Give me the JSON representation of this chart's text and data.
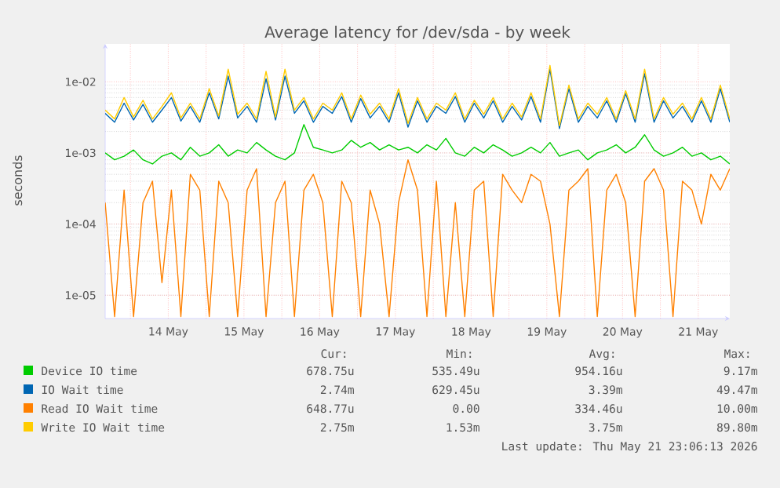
{
  "chart_data": {
    "type": "line",
    "title": "Average latency for /dev/sda - by week",
    "ylabel": "seconds",
    "x": [
      "2026-05-13T16:00",
      "2026-05-13T19:00",
      "2026-05-13T22:00",
      "2026-05-14T01:00",
      "2026-05-14T04:00",
      "2026-05-14T07:00",
      "2026-05-14T10:00",
      "2026-05-14T13:00",
      "2026-05-14T16:00",
      "2026-05-14T19:00",
      "2026-05-14T22:00",
      "2026-05-15T01:00",
      "2026-05-15T04:00",
      "2026-05-15T07:00",
      "2026-05-15T10:00",
      "2026-05-15T13:00",
      "2026-05-15T16:00",
      "2026-05-15T19:00",
      "2026-05-15T22:00",
      "2026-05-16T01:00",
      "2026-05-16T04:00",
      "2026-05-16T07:00",
      "2026-05-16T10:00",
      "2026-05-16T13:00",
      "2026-05-16T16:00",
      "2026-05-16T19:00",
      "2026-05-16T22:00",
      "2026-05-17T01:00",
      "2026-05-17T04:00",
      "2026-05-17T07:00",
      "2026-05-17T10:00",
      "2026-05-17T13:00",
      "2026-05-17T16:00",
      "2026-05-17T19:00",
      "2026-05-17T22:00",
      "2026-05-18T01:00",
      "2026-05-18T04:00",
      "2026-05-18T07:00",
      "2026-05-18T10:00",
      "2026-05-18T13:00",
      "2026-05-18T16:00",
      "2026-05-18T19:00",
      "2026-05-18T22:00",
      "2026-05-19T01:00",
      "2026-05-19T04:00",
      "2026-05-19T07:00",
      "2026-05-19T10:00",
      "2026-05-19T13:00",
      "2026-05-19T16:00",
      "2026-05-19T19:00",
      "2026-05-19T22:00",
      "2026-05-20T01:00",
      "2026-05-20T04:00",
      "2026-05-20T07:00",
      "2026-05-20T10:00",
      "2026-05-20T13:00",
      "2026-05-20T16:00",
      "2026-05-20T19:00",
      "2026-05-20T22:00",
      "2026-05-21T01:00",
      "2026-05-21T04:00",
      "2026-05-21T07:00",
      "2026-05-21T10:00",
      "2026-05-21T13:00",
      "2026-05-21T16:00",
      "2026-05-21T19:00",
      "2026-05-21T22:00"
    ],
    "series": [
      {
        "name": "Device IO time",
        "color": "#00cc00",
        "values": [
          0.001,
          0.0008,
          0.0009,
          0.0011,
          0.0008,
          0.0007,
          0.0009,
          0.001,
          0.0008,
          0.0012,
          0.0009,
          0.001,
          0.0013,
          0.0009,
          0.0011,
          0.001,
          0.0014,
          0.0011,
          0.0009,
          0.0008,
          0.001,
          0.0025,
          0.0012,
          0.0011,
          0.001,
          0.0011,
          0.0015,
          0.0012,
          0.0014,
          0.0011,
          0.0013,
          0.0011,
          0.0012,
          0.001,
          0.0013,
          0.0011,
          0.0016,
          0.001,
          0.0009,
          0.0012,
          0.001,
          0.0013,
          0.0011,
          0.0009,
          0.001,
          0.0012,
          0.001,
          0.0014,
          0.0009,
          0.001,
          0.0011,
          0.0008,
          0.001,
          0.0011,
          0.0013,
          0.001,
          0.0012,
          0.0018,
          0.0011,
          0.0009,
          0.001,
          0.0012,
          0.0009,
          0.001,
          0.0008,
          0.0009,
          0.0007
        ]
      },
      {
        "name": "IO Wait time",
        "color": "#0066b3",
        "values": [
          0.0036,
          0.0027,
          0.005,
          0.0029,
          0.0048,
          0.0027,
          0.004,
          0.006,
          0.0028,
          0.0045,
          0.0027,
          0.007,
          0.003,
          0.012,
          0.0031,
          0.0045,
          0.0027,
          0.011,
          0.0029,
          0.012,
          0.0036,
          0.0054,
          0.0027,
          0.0045,
          0.0036,
          0.0062,
          0.0027,
          0.0058,
          0.0031,
          0.0045,
          0.0027,
          0.007,
          0.0023,
          0.0054,
          0.0027,
          0.0045,
          0.0036,
          0.0062,
          0.0027,
          0.005,
          0.0031,
          0.0054,
          0.0027,
          0.0045,
          0.0029,
          0.0062,
          0.0027,
          0.015,
          0.0022,
          0.008,
          0.0027,
          0.0045,
          0.0031,
          0.0054,
          0.0027,
          0.0068,
          0.0027,
          0.013,
          0.0027,
          0.0054,
          0.0031,
          0.0045,
          0.0027,
          0.0054,
          0.0027,
          0.008,
          0.0027
        ]
      },
      {
        "name": "Read IO Wait time",
        "color": "#ff8000",
        "values": [
          0.0002,
          5e-06,
          0.0003,
          5e-06,
          0.0002,
          0.0004,
          1.5e-05,
          0.0003,
          5e-06,
          0.0005,
          0.0003,
          5e-06,
          0.0004,
          0.0002,
          5e-06,
          0.0003,
          0.0006,
          5e-06,
          0.0002,
          0.0004,
          5e-06,
          0.0003,
          0.0005,
          0.0002,
          5e-06,
          0.0004,
          0.0002,
          5e-06,
          0.0003,
          0.0001,
          5e-06,
          0.0002,
          0.0008,
          0.0003,
          5e-06,
          0.0004,
          5e-06,
          0.0002,
          5e-06,
          0.0003,
          0.0004,
          5e-06,
          0.0005,
          0.0003,
          0.0002,
          0.0005,
          0.0004,
          0.0001,
          5e-06,
          0.0003,
          0.0004,
          0.0006,
          5e-06,
          0.0003,
          0.0005,
          0.0002,
          5e-06,
          0.0004,
          0.0006,
          0.0003,
          5e-06,
          0.0004,
          0.0003,
          0.0001,
          0.0005,
          0.0003,
          0.0006
        ]
      },
      {
        "name": "Write IO Wait time",
        "color": "#ffcc00",
        "values": [
          0.004,
          0.003,
          0.006,
          0.0032,
          0.0055,
          0.003,
          0.0045,
          0.007,
          0.0031,
          0.005,
          0.003,
          0.008,
          0.0033,
          0.015,
          0.0035,
          0.005,
          0.003,
          0.014,
          0.0032,
          0.015,
          0.004,
          0.006,
          0.003,
          0.005,
          0.004,
          0.007,
          0.003,
          0.0065,
          0.0035,
          0.005,
          0.003,
          0.008,
          0.0026,
          0.006,
          0.003,
          0.005,
          0.004,
          0.007,
          0.003,
          0.0055,
          0.0035,
          0.006,
          0.003,
          0.005,
          0.0032,
          0.007,
          0.003,
          0.017,
          0.0024,
          0.009,
          0.003,
          0.005,
          0.0035,
          0.006,
          0.003,
          0.0075,
          0.003,
          0.015,
          0.003,
          0.006,
          0.0035,
          0.005,
          0.003,
          0.006,
          0.003,
          0.009,
          0.003
        ]
      }
    ],
    "xlim": [
      "2026-05-13T16:00",
      "2026-05-21T22:00"
    ],
    "xticks": [
      {
        "value": "2026-05-14T00:00",
        "label": null
      },
      {
        "value": "2026-05-14T12:00",
        "label": "14 May"
      },
      {
        "value": "2026-05-15T00:00",
        "label": null
      },
      {
        "value": "2026-05-15T12:00",
        "label": "15 May"
      },
      {
        "value": "2026-05-16T00:00",
        "label": null
      },
      {
        "value": "2026-05-16T12:00",
        "label": "16 May"
      },
      {
        "value": "2026-05-17T00:00",
        "label": null
      },
      {
        "value": "2026-05-17T12:00",
        "label": "17 May"
      },
      {
        "value": "2026-05-18T00:00",
        "label": null
      },
      {
        "value": "2026-05-18T12:00",
        "label": "18 May"
      },
      {
        "value": "2026-05-19T00:00",
        "label": null
      },
      {
        "value": "2026-05-19T12:00",
        "label": "19 May"
      },
      {
        "value": "2026-05-20T00:00",
        "label": null
      },
      {
        "value": "2026-05-20T12:00",
        "label": "20 May"
      },
      {
        "value": "2026-05-21T00:00",
        "label": null
      },
      {
        "value": "2026-05-21T12:00",
        "label": "21 May"
      }
    ],
    "ylim": [
      4.7e-06,
      0.034
    ],
    "yticks": [
      {
        "value": 1e-05,
        "label": "1e-05"
      },
      {
        "value": 0.0001,
        "label": "1e-04"
      },
      {
        "value": 0.001,
        "label": "1e-03"
      },
      {
        "value": 0.01,
        "label": "1e-02"
      }
    ],
    "log": "y",
    "grid": true,
    "legend": "bottom",
    "marker": "none",
    "line_style": "solid",
    "annotations": [
      "Cur:",
      "Min:",
      "Avg:",
      "Max:",
      "678.75u",
      "535.49u",
      "954.16u",
      "9.17m",
      "2.74m",
      "629.45u",
      "3.39m",
      "49.47m",
      "648.77u",
      "0.00",
      "334.46u",
      "10.00m",
      "2.75m",
      "1.53m",
      "3.75m",
      "89.80m",
      "Last update: Thu May 21 23:06:13 2026"
    ]
  }
}
